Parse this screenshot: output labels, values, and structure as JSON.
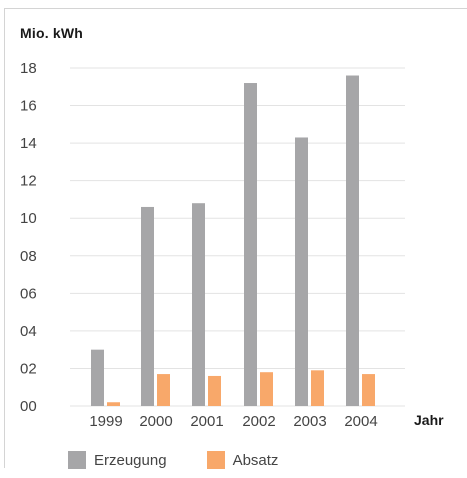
{
  "chart_data": {
    "type": "bar",
    "unit_label": "Mio. kWh",
    "xlabel": "Jahr",
    "categories": [
      "1999",
      "2000",
      "2001",
      "2002",
      "2003",
      "2004"
    ],
    "ylim": [
      0,
      18
    ],
    "y_ticks": [
      0,
      2,
      4,
      6,
      8,
      10,
      12,
      14,
      16,
      18
    ],
    "y_tick_labels": [
      "00",
      "02",
      "04",
      "06",
      "08",
      "10",
      "12",
      "14",
      "16",
      "18"
    ],
    "series": [
      {
        "name": "Erzeugung",
        "color": "#a6a6a8",
        "values": [
          3.0,
          10.6,
          10.8,
          17.2,
          14.3,
          17.6
        ]
      },
      {
        "name": "Absatz",
        "color": "#f8a86a",
        "values": [
          0.2,
          1.7,
          1.6,
          1.8,
          1.9,
          1.7
        ]
      }
    ],
    "grid": "horizontal",
    "legend_position": "bottom"
  }
}
